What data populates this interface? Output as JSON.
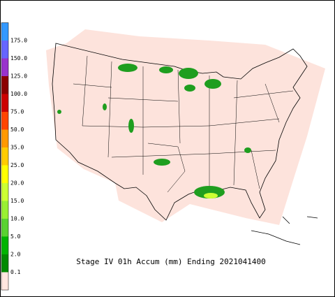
{
  "caption": "Stage IV 01h Accum (mm) Ending 2021041400",
  "legend": {
    "labels": [
      "0.1",
      "2.0",
      "5.0",
      "10.0",
      "15.0",
      "20.0",
      "25.0",
      "35.0",
      "50.0",
      "75.0",
      "100.0",
      "125.0",
      "150.0",
      "175.0"
    ],
    "colors": [
      "#ffe6e0",
      "#008a00",
      "#00b400",
      "#5ad232",
      "#99f033",
      "#ccff33",
      "#ffff00",
      "#ffcc00",
      "#ff9900",
      "#ff4500",
      "#cc0000",
      "#8b0000",
      "#9933cc",
      "#6666ff",
      "#3399ff"
    ]
  }
}
